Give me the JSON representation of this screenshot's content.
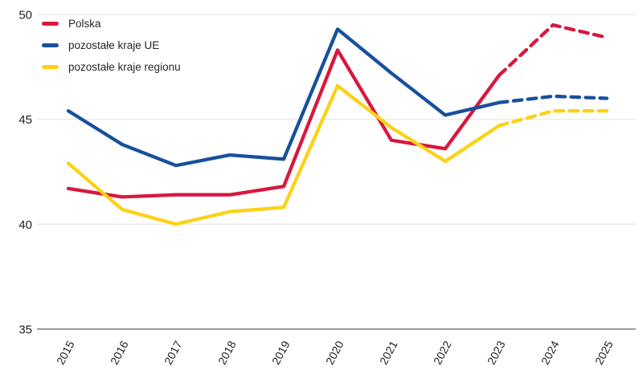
{
  "chart_data": {
    "type": "line",
    "title": "",
    "xlabel": "",
    "ylabel": "",
    "categories": [
      "2015",
      "2016",
      "2017",
      "2018",
      "2019",
      "2020",
      "2021",
      "2022",
      "2023",
      "2024",
      "2025"
    ],
    "series": [
      {
        "name": "Polska",
        "color": "#D8173F",
        "values": [
          41.7,
          41.3,
          41.4,
          41.4,
          41.8,
          48.3,
          44.0,
          43.6,
          47.1,
          49.5,
          48.9
        ]
      },
      {
        "name": "pozostałe kraje UE",
        "color": "#17509D",
        "values": [
          45.4,
          43.8,
          42.8,
          43.3,
          43.1,
          49.3,
          47.2,
          45.2,
          45.8,
          46.1,
          46.0
        ]
      },
      {
        "name": "pozostałe kraje regionu",
        "color": "#FDD117",
        "values": [
          42.9,
          40.7,
          40.0,
          40.6,
          40.8,
          46.6,
          44.6,
          43.0,
          44.7,
          45.4,
          45.4
        ]
      }
    ],
    "forecast_start_index": 8,
    "forecast_style": "dashed",
    "y_axis": {
      "min": 35,
      "max": 50,
      "ticks": [
        50,
        45,
        40,
        35
      ]
    },
    "grid": "horizontal",
    "legend_position": "top-left",
    "colors": {
      "grid": "#EAEAEA",
      "axis": "#9C9C9C",
      "tick_label": "#1F1F1F",
      "background": "#FFFFFF"
    }
  }
}
